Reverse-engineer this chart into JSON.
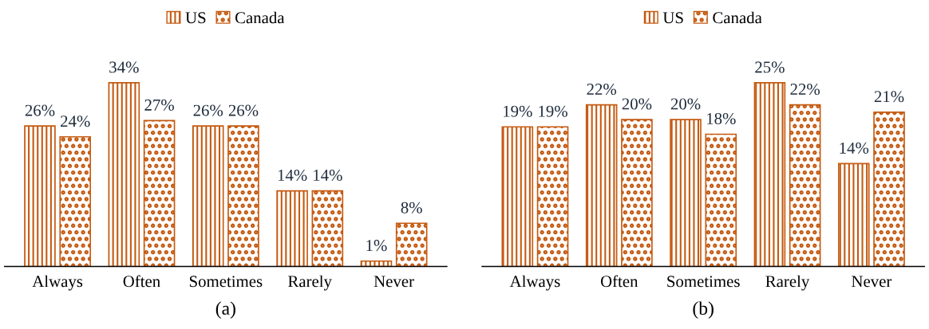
{
  "chart_data": [
    {
      "type": "bar",
      "xlabel": "(a)",
      "categories": [
        "Always",
        "Often",
        "Sometimes",
        "Rarely",
        "Never"
      ],
      "legend": "top",
      "grid": false,
      "tick_labels": "x",
      "series": [
        {
          "name": "US",
          "color": "#c55a11",
          "values": [
            26,
            34,
            26,
            14,
            1
          ],
          "value_labels": [
            "26%",
            "34%",
            "26%",
            "14%",
            "1%"
          ]
        },
        {
          "name": "Canada",
          "color": "#c55a11",
          "values": [
            24,
            27,
            26,
            14,
            8
          ],
          "value_labels": [
            "24%",
            "27%",
            "26%",
            "14%",
            "8%"
          ]
        }
      ]
    },
    {
      "type": "bar",
      "xlabel": "(b)",
      "categories": [
        "Always",
        "Often",
        "Sometimes",
        "Rarely",
        "Never"
      ],
      "legend": "top",
      "grid": false,
      "tick_labels": "x",
      "series": [
        {
          "name": "US",
          "color": "#c55a11",
          "values": [
            19,
            22,
            20,
            25,
            14
          ],
          "value_labels": [
            "19%",
            "22%",
            "20%",
            "25%",
            "14%"
          ]
        },
        {
          "name": "Canada",
          "color": "#c55a11",
          "values": [
            19,
            20,
            18,
            22,
            21
          ],
          "value_labels": [
            "19%",
            "20%",
            "18%",
            "22%",
            "21%"
          ]
        }
      ]
    }
  ]
}
